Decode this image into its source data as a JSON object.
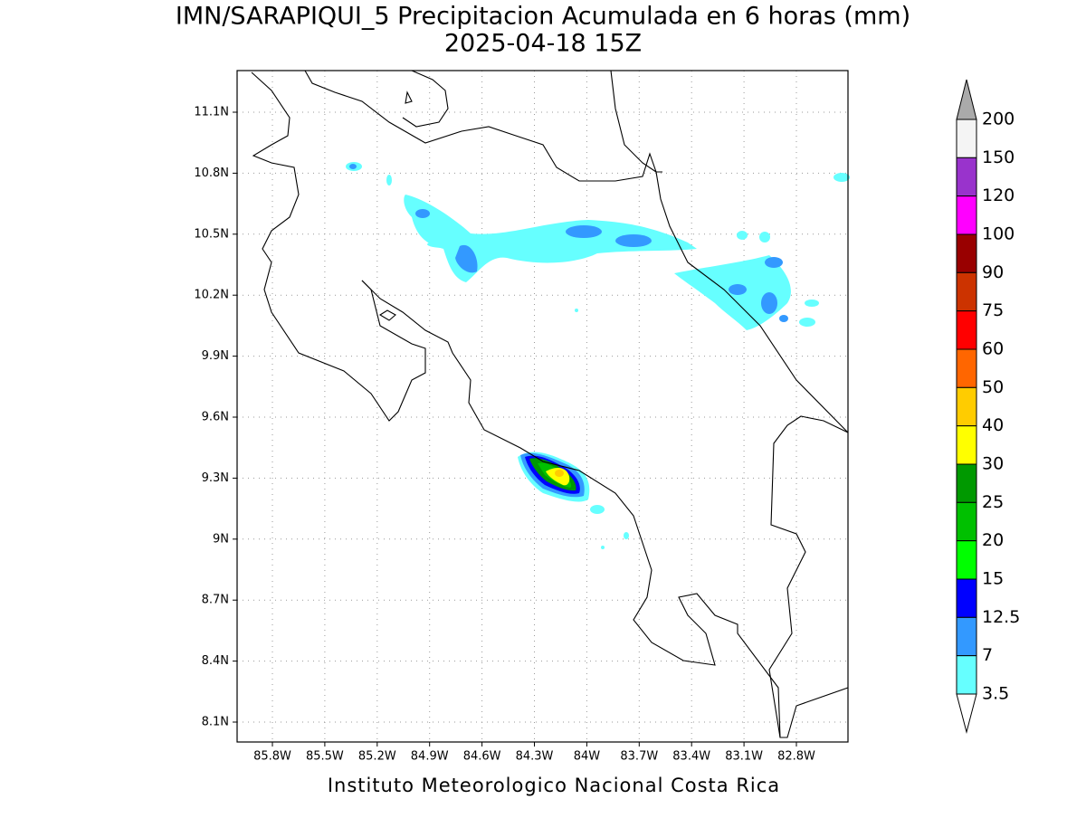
{
  "title": "IMN/SARAPIQUI_5 Precipitacion Acumulada en 6 horas (mm)",
  "subtitle": "2025-04-18 15Z",
  "x_ticks": [
    "85.8W",
    "85.5W",
    "85.2W",
    "84.9W",
    "84.6W",
    "84.3W",
    "84W",
    "83.7W",
    "83.4W",
    "83.1W",
    "82.8W"
  ],
  "y_ticks": [
    "11.1N",
    "10.8N",
    "10.5N",
    "10.2N",
    "9.9N",
    "9.6N",
    "9.3N",
    "9N",
    "8.7N",
    "8.4N",
    "8.1N"
  ],
  "colorbar": {
    "levels": [
      200,
      150,
      120,
      100,
      90,
      75,
      60,
      50,
      40,
      30,
      25,
      20,
      15,
      12.5,
      7,
      3.5
    ],
    "colors": [
      "#f4f4f4",
      "#9933cc",
      "#ff00ff",
      "#990000",
      "#cc3300",
      "#ff0000",
      "#ff6600",
      "#ffcc00",
      "#ffff00",
      "#009900",
      "#00c000",
      "#00ff00",
      "#0000ff",
      "#3399ff",
      "#66ffff"
    ],
    "over_color": "#aaaaaa",
    "under_color": "#ffffff"
  },
  "footer": "Instituto Meteorologico Nacional Costa Rica"
}
